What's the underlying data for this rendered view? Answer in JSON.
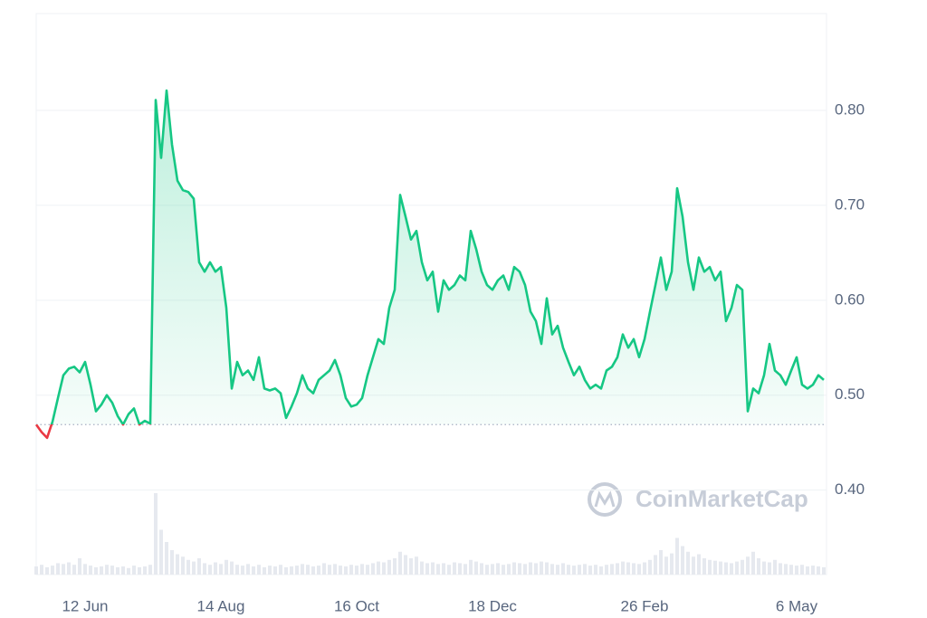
{
  "chart_data": {
    "type": "line",
    "watermark": "CoinMarketCap",
    "baseline": 0.469,
    "ylim": [
      0.311,
      0.902
    ],
    "yticks": [
      {
        "value": 0.4,
        "label": "0.40"
      },
      {
        "value": 0.5,
        "label": "0.50"
      },
      {
        "value": 0.6,
        "label": "0.60"
      },
      {
        "value": 0.7,
        "label": "0.70"
      },
      {
        "value": 0.8,
        "label": "0.80"
      }
    ],
    "grid": true,
    "up_color": "#16c784",
    "down_color": "#ea3943",
    "volume_color": "#e6e9ef",
    "categories": [
      null,
      null,
      null,
      null,
      null,
      null,
      null,
      null,
      null,
      "12 Jun",
      null,
      null,
      null,
      null,
      null,
      null,
      null,
      null,
      null,
      null,
      null,
      null,
      null,
      null,
      null,
      null,
      null,
      null,
      null,
      null,
      null,
      null,
      null,
      null,
      "14 Aug",
      null,
      null,
      null,
      null,
      null,
      null,
      null,
      null,
      null,
      null,
      null,
      null,
      null,
      null,
      null,
      null,
      null,
      null,
      null,
      null,
      null,
      null,
      null,
      null,
      "16 Oct",
      null,
      null,
      null,
      null,
      null,
      null,
      null,
      null,
      null,
      null,
      null,
      null,
      null,
      null,
      null,
      null,
      null,
      null,
      null,
      null,
      null,
      null,
      null,
      null,
      "18 Dec",
      null,
      null,
      null,
      null,
      null,
      null,
      null,
      null,
      null,
      null,
      null,
      null,
      null,
      null,
      null,
      null,
      null,
      null,
      null,
      null,
      null,
      null,
      null,
      null,
      null,
      null,
      null,
      "26 Feb",
      null,
      null,
      null,
      null,
      null,
      null,
      null,
      null,
      null,
      null,
      null,
      null,
      null,
      null,
      null,
      null,
      null,
      null,
      null,
      null,
      null,
      null,
      null,
      null,
      null,
      null,
      null,
      "6 May",
      null,
      null,
      null,
      null,
      null
    ],
    "values": [
      0.469,
      0.461,
      0.455,
      0.472,
      0.497,
      0.521,
      0.528,
      0.53,
      0.524,
      0.535,
      0.511,
      0.483,
      0.49,
      0.5,
      0.492,
      0.478,
      0.469,
      0.48,
      0.486,
      0.469,
      0.473,
      0.47,
      0.811,
      0.75,
      0.821,
      0.764,
      0.726,
      0.716,
      0.714,
      0.707,
      0.64,
      0.63,
      0.64,
      0.63,
      0.635,
      0.592,
      0.507,
      0.535,
      0.521,
      0.526,
      0.516,
      0.54,
      0.507,
      0.505,
      0.507,
      0.502,
      0.476,
      0.488,
      0.502,
      0.521,
      0.507,
      0.502,
      0.516,
      0.521,
      0.526,
      0.537,
      0.521,
      0.497,
      0.488,
      0.49,
      0.497,
      0.521,
      0.54,
      0.559,
      0.554,
      0.592,
      0.611,
      0.711,
      0.688,
      0.664,
      0.673,
      0.64,
      0.621,
      0.63,
      0.588,
      0.621,
      0.611,
      0.616,
      0.626,
      0.621,
      0.673,
      0.654,
      0.63,
      0.616,
      0.611,
      0.621,
      0.626,
      0.611,
      0.635,
      0.63,
      0.616,
      0.588,
      0.578,
      0.554,
      0.602,
      0.564,
      0.573,
      0.55,
      0.535,
      0.521,
      0.53,
      0.516,
      0.507,
      0.511,
      0.507,
      0.526,
      0.53,
      0.54,
      0.564,
      0.55,
      0.559,
      0.54,
      0.559,
      0.588,
      0.616,
      0.645,
      0.611,
      0.63,
      0.718,
      0.688,
      0.64,
      0.611,
      0.645,
      0.63,
      0.635,
      0.621,
      0.63,
      0.578,
      0.592,
      0.616,
      0.611,
      0.483,
      0.507,
      0.502,
      0.521,
      0.554,
      0.526,
      0.521,
      0.511,
      0.526,
      0.54,
      0.511,
      0.507,
      0.511,
      0.521,
      0.516
    ],
    "volume": [
      10,
      12,
      9,
      11,
      14,
      13,
      15,
      12,
      20,
      13,
      11,
      9,
      10,
      12,
      11,
      9,
      10,
      8,
      11,
      9,
      10,
      12,
      100,
      55,
      40,
      30,
      25,
      22,
      18,
      16,
      20,
      14,
      12,
      15,
      13,
      18,
      16,
      12,
      11,
      13,
      10,
      12,
      9,
      11,
      10,
      12,
      9,
      10,
      11,
      13,
      12,
      10,
      11,
      14,
      12,
      13,
      11,
      10,
      12,
      11,
      13,
      12,
      14,
      16,
      15,
      18,
      20,
      28,
      24,
      20,
      22,
      16,
      14,
      15,
      13,
      14,
      12,
      15,
      14,
      13,
      18,
      16,
      14,
      12,
      13,
      14,
      12,
      13,
      15,
      14,
      13,
      15,
      14,
      16,
      15,
      13,
      12,
      14,
      12,
      11,
      12,
      13,
      11,
      12,
      10,
      12,
      13,
      14,
      16,
      15,
      14,
      13,
      15,
      18,
      24,
      30,
      22,
      26,
      45,
      35,
      28,
      22,
      25,
      20,
      18,
      17,
      16,
      15,
      14,
      16,
      18,
      22,
      28,
      20,
      16,
      15,
      18,
      14,
      13,
      12,
      11,
      12,
      10,
      11,
      10,
      9
    ]
  }
}
